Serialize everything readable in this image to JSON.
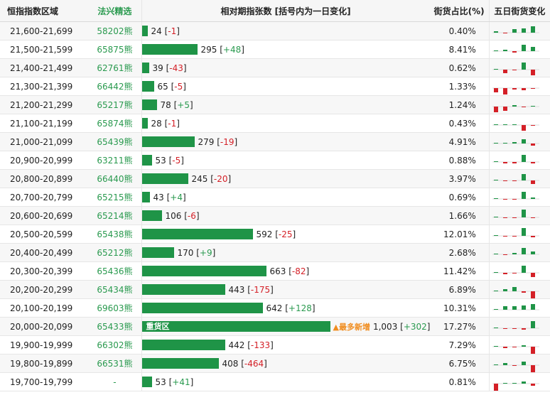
{
  "headers": {
    "range": "恒指指数区域",
    "code": "法兴精选",
    "bar": "相对期指张数 [括号内为一日变化]",
    "pct": "街货占比(%)",
    "five": "五日街货变化"
  },
  "max_value": 1003,
  "colors": {
    "bar": "#1f9447",
    "positive": "#2a9a4f",
    "negative": "#d42027",
    "highlight": "#f08c1e"
  },
  "rows": [
    {
      "range": "21,600-21,699",
      "code": "58202熊",
      "value": "24",
      "change": "-1",
      "pct": "0.40%",
      "five": [
        2,
        -1,
        5,
        6,
        9
      ]
    },
    {
      "range": "21,500-21,599",
      "code": "65875熊",
      "value": "295",
      "change": "+48",
      "pct": "8.41%",
      "five": [
        1,
        2,
        -2,
        9,
        6
      ]
    },
    {
      "range": "21,400-21,499",
      "code": "62761熊",
      "value": "39",
      "change": "-43",
      "pct": "0.62%",
      "five": [
        1,
        -5,
        -1,
        10,
        -8
      ]
    },
    {
      "range": "21,300-21,399",
      "code": "66442熊",
      "value": "65",
      "change": "-5",
      "pct": "1.33%",
      "five": [
        -6,
        -9,
        -2,
        -3,
        -1
      ]
    },
    {
      "range": "21,200-21,299",
      "code": "65217熊",
      "value": "78",
      "change": "+5",
      "pct": "1.24%",
      "five": [
        -8,
        -6,
        2,
        -1,
        1
      ]
    },
    {
      "range": "21,100-21,199",
      "code": "65874熊",
      "value": "28",
      "change": "-1",
      "pct": "0.43%",
      "five": [
        1,
        1,
        0,
        -8,
        -1
      ]
    },
    {
      "range": "21,000-21,099",
      "code": "65439熊",
      "value": "279",
      "change": "-19",
      "pct": "4.91%",
      "five": [
        1,
        0,
        2,
        6,
        -3
      ]
    },
    {
      "range": "20,900-20,999",
      "code": "63211熊",
      "value": "53",
      "change": "-5",
      "pct": "0.88%",
      "five": [
        1,
        -2,
        -2,
        10,
        -2
      ]
    },
    {
      "range": "20,800-20,899",
      "code": "66440熊",
      "value": "245",
      "change": "-20",
      "pct": "3.97%",
      "five": [
        1,
        -1,
        -1,
        9,
        -5
      ]
    },
    {
      "range": "20,700-20,799",
      "code": "65215熊",
      "value": "43",
      "change": "+4",
      "pct": "0.69%",
      "five": [
        1,
        -1,
        -1,
        10,
        2
      ]
    },
    {
      "range": "20,600-20,699",
      "code": "65214熊",
      "value": "106",
      "change": "-6",
      "pct": "1.66%",
      "five": [
        1,
        -1,
        -1,
        11,
        -1
      ]
    },
    {
      "range": "20,500-20,599",
      "code": "65438熊",
      "value": "592",
      "change": "-25",
      "pct": "12.01%",
      "five": [
        1,
        -1,
        -1,
        11,
        -2
      ]
    },
    {
      "range": "20,400-20,499",
      "code": "65212熊",
      "value": "170",
      "change": "+9",
      "pct": "2.68%",
      "five": [
        1,
        -1,
        2,
        9,
        4
      ]
    },
    {
      "range": "20,300-20,399",
      "code": "65436熊",
      "value": "663",
      "change": "-82",
      "pct": "11.42%",
      "five": [
        1,
        -2,
        -1,
        10,
        -6
      ]
    },
    {
      "range": "20,200-20,299",
      "code": "65434熊",
      "value": "443",
      "change": "-175",
      "pct": "6.89%",
      "five": [
        1,
        3,
        6,
        -2,
        -10
      ]
    },
    {
      "range": "20,100-20,199",
      "code": "69603熊",
      "value": "642",
      "change": "+128",
      "pct": "10.31%",
      "five": [
        1,
        5,
        5,
        6,
        8
      ]
    },
    {
      "range": "20,000-20,099",
      "code": "65433熊",
      "value": "1,003",
      "change": "+302",
      "pct": "17.27%",
      "five": [
        1,
        -1,
        -1,
        -2,
        10
      ],
      "inlabel": "重货区",
      "hot": "▲最多新增"
    },
    {
      "range": "19,900-19,999",
      "code": "66302熊",
      "value": "442",
      "change": "-133",
      "pct": "7.29%",
      "five": [
        1,
        -2,
        -1,
        2,
        -10
      ]
    },
    {
      "range": "19,800-19,899",
      "code": "66531熊",
      "value": "408",
      "change": "-464",
      "pct": "6.75%",
      "five": [
        1,
        3,
        -1,
        5,
        -14
      ]
    },
    {
      "range": "19,700-19,799",
      "code": "-",
      "value": "53",
      "change": "+41",
      "pct": "0.81%",
      "five": [
        -12,
        1,
        1,
        3,
        -3
      ]
    }
  ]
}
